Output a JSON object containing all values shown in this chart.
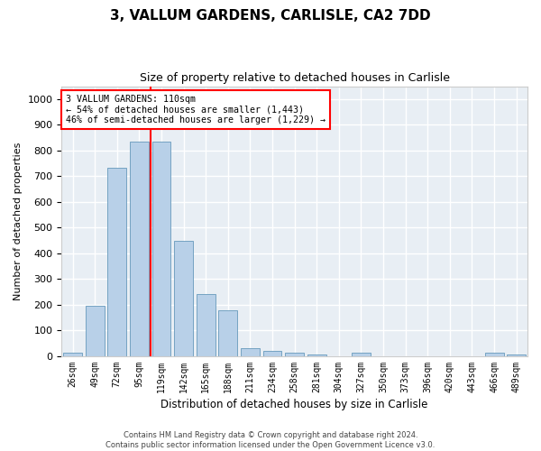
{
  "title1": "3, VALLUM GARDENS, CARLISLE, CA2 7DD",
  "title2": "Size of property relative to detached houses in Carlisle",
  "xlabel": "Distribution of detached houses by size in Carlisle",
  "ylabel": "Number of detached properties",
  "annotation_line1": "3 VALLUM GARDENS: 110sqm",
  "annotation_line2": "← 54% of detached houses are smaller (1,443)",
  "annotation_line3": "46% of semi-detached houses are larger (1,229) →",
  "footer1": "Contains HM Land Registry data © Crown copyright and database right 2024.",
  "footer2": "Contains public sector information licensed under the Open Government Licence v3.0.",
  "categories": [
    "26sqm",
    "49sqm",
    "72sqm",
    "95sqm",
    "119sqm",
    "142sqm",
    "165sqm",
    "188sqm",
    "211sqm",
    "234sqm",
    "258sqm",
    "281sqm",
    "304sqm",
    "327sqm",
    "350sqm",
    "373sqm",
    "396sqm",
    "420sqm",
    "443sqm",
    "466sqm",
    "489sqm"
  ],
  "bar_values": [
    13,
    195,
    733,
    833,
    833,
    447,
    242,
    178,
    30,
    20,
    13,
    8,
    0,
    13,
    0,
    0,
    0,
    0,
    0,
    13,
    8
  ],
  "bar_color": "#b8d0e8",
  "bar_edge_color": "#6699bb",
  "vline_color": "red",
  "annotation_box_edge": "red",
  "ylim": [
    0,
    1050
  ],
  "yticks": [
    0,
    100,
    200,
    300,
    400,
    500,
    600,
    700,
    800,
    900,
    1000
  ],
  "bg_color": "#e8eef4",
  "grid_color": "white",
  "title1_fontsize": 11,
  "title2_fontsize": 9
}
